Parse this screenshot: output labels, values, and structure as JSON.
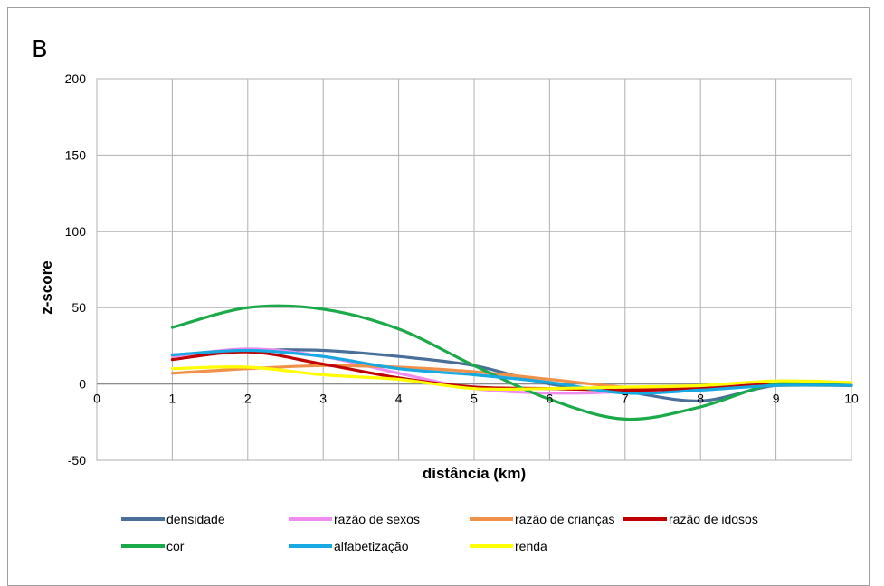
{
  "panel_label": "B",
  "colors": {
    "densidade": "#4a6f9a",
    "razao_sexos": "#f08cf0",
    "razao_criancas": "#f0914a",
    "razao_idosos": "#c00000",
    "cor": "#1aaa4a",
    "alfabetizacao": "#17a9e1",
    "renda": "#ffff00",
    "grid": "#b0b0b0",
    "axis": "#8c8c8c"
  },
  "chart_data": {
    "type": "line",
    "title": "",
    "xlabel": "distância (km)",
    "ylabel": "z-score",
    "xlim": [
      0,
      10
    ],
    "ylim": [
      -50,
      200
    ],
    "xticks": [
      "0",
      "1",
      "2",
      "3",
      "4",
      "5",
      "6",
      "7",
      "8",
      "9",
      "10"
    ],
    "yticks": [
      "200",
      "150",
      "100",
      "50",
      "0",
      "-50"
    ],
    "grid": true,
    "smooth": true,
    "legend_position": "bottom",
    "x": [
      1,
      2,
      3,
      4,
      5,
      6,
      7,
      8,
      9,
      10
    ],
    "series": [
      {
        "name": "densidade",
        "color_key": "densidade",
        "values": [
          19,
          22,
          22,
          18,
          12,
          0,
          -5,
          -11,
          -1,
          -1
        ]
      },
      {
        "name": "razão de sexos",
        "color_key": "razao_sexos",
        "values": [
          18,
          23,
          18,
          7,
          -3,
          -6,
          -5,
          -2,
          0,
          -1
        ]
      },
      {
        "name": "razão de crianças",
        "color_key": "razao_criancas",
        "values": [
          7,
          10,
          12,
          11,
          8,
          3,
          -2,
          -3,
          -1,
          -1
        ]
      },
      {
        "name": "razão de idosos",
        "color_key": "razao_idosos",
        "values": [
          16,
          21,
          13,
          4,
          -2,
          -3,
          -4,
          -3,
          0,
          -1
        ]
      },
      {
        "name": "cor",
        "color_key": "cor",
        "values": [
          37,
          50,
          49,
          36,
          12,
          -10,
          -23,
          -15,
          0,
          -1
        ]
      },
      {
        "name": "alfabetização",
        "color_key": "alfabetizacao",
        "values": [
          19,
          22,
          18,
          10,
          6,
          1,
          -6,
          -4,
          -1,
          -1
        ]
      },
      {
        "name": "renda",
        "color_key": "renda",
        "values": [
          10,
          11,
          6,
          3,
          -3,
          -3,
          -2,
          -1,
          2,
          1
        ]
      }
    ]
  }
}
